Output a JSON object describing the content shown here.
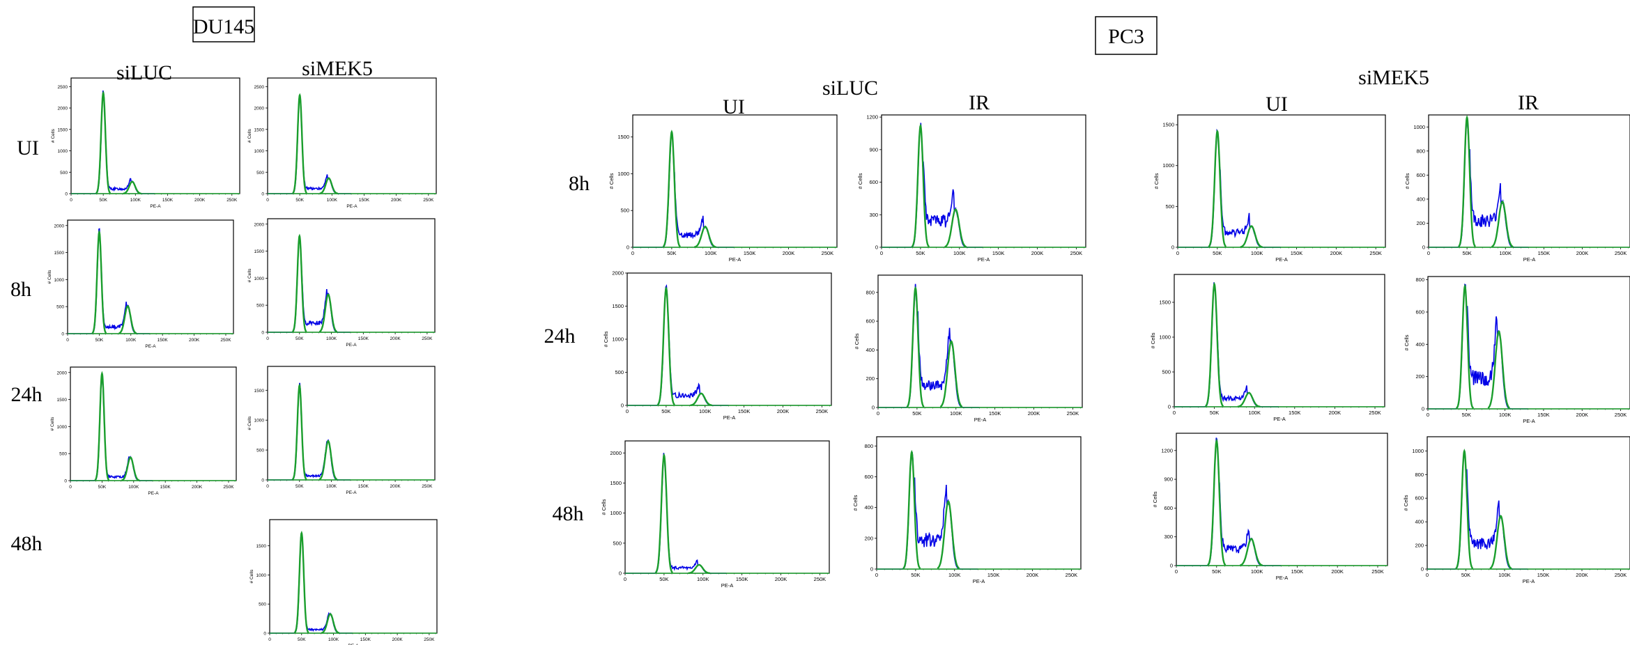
{
  "colors": {
    "g1": "#1a9e2c",
    "g2m": "#0000e6",
    "frame": "#000000"
  },
  "boxes": [
    {
      "id": "du145",
      "text": "DU145"
    },
    {
      "id": "pc3",
      "text": "PC3"
    }
  ],
  "labels": [
    {
      "id": "du-siluc",
      "text": "siLUC"
    },
    {
      "id": "du-simek5",
      "text": "siMEK5"
    },
    {
      "id": "du-row-ui",
      "text": "UI"
    },
    {
      "id": "du-row-8h",
      "text": "8h"
    },
    {
      "id": "du-row-24h",
      "text": "24h"
    },
    {
      "id": "du-row-48h",
      "text": "48h"
    },
    {
      "id": "pc-siluc",
      "text": "siLUC"
    },
    {
      "id": "pc-simek5",
      "text": "siMEK5"
    },
    {
      "id": "pc-siluc-ui",
      "text": "UI"
    },
    {
      "id": "pc-siluc-ir",
      "text": "IR"
    },
    {
      "id": "pc-simek5-ui",
      "text": "UI"
    },
    {
      "id": "pc-simek5-ir",
      "text": "IR"
    },
    {
      "id": "pc-row-8h",
      "text": "8h"
    },
    {
      "id": "pc-row-24h",
      "text": "24h"
    },
    {
      "id": "pc-row-48h",
      "text": "48h"
    }
  ],
  "chart_data": [
    {
      "id": "du-siluc-ui",
      "type": "area",
      "xlabel": "PE-A",
      "ylabel": "# Cells",
      "xlim": [
        0,
        262144
      ],
      "xticks": [
        "0",
        "50K",
        "100K",
        "150K",
        "200K",
        "250K"
      ],
      "ylim": [
        0,
        2700
      ],
      "yticks": [
        "0",
        "500",
        "1000",
        "1500",
        "2000",
        "2500"
      ],
      "g1_height": 2350,
      "g1_pos": 50000,
      "g2_height": 280,
      "g2_pos": 95000,
      "s_phase": 110
    },
    {
      "id": "du-simek5-ui",
      "type": "area",
      "xlabel": "PE-A",
      "ylabel": "# Cells",
      "xlim": [
        0,
        262144
      ],
      "xticks": [
        "0",
        "50K",
        "100K",
        "150K",
        "200K",
        "250K"
      ],
      "ylim": [
        0,
        2700
      ],
      "yticks": [
        "0",
        "500",
        "1000",
        "1500",
        "2000",
        "2500"
      ],
      "g1_height": 2300,
      "g1_pos": 50000,
      "g2_height": 360,
      "g2_pos": 95000,
      "s_phase": 120
    },
    {
      "id": "du-siluc-8h",
      "type": "area",
      "xlabel": "PE-A",
      "ylabel": "# Cells",
      "xlim": [
        0,
        262144
      ],
      "xticks": [
        "0",
        "50K",
        "100K",
        "150K",
        "200K",
        "250K"
      ],
      "ylim": [
        0,
        2100
      ],
      "yticks": [
        "0",
        "500",
        "1000",
        "1500",
        "2000"
      ],
      "g1_height": 1880,
      "g1_pos": 50000,
      "g2_height": 510,
      "g2_pos": 95000,
      "s_phase": 130
    },
    {
      "id": "du-simek5-8h",
      "type": "area",
      "xlabel": "PE-A",
      "ylabel": "# Cells",
      "xlim": [
        0,
        262144
      ],
      "xticks": [
        "0",
        "50K",
        "100K",
        "150K",
        "200K",
        "250K"
      ],
      "ylim": [
        0,
        2100
      ],
      "yticks": [
        "0",
        "500",
        "1000",
        "1500",
        "2000"
      ],
      "g1_height": 1780,
      "g1_pos": 50000,
      "g2_height": 700,
      "g2_pos": 95000,
      "s_phase": 170
    },
    {
      "id": "du-siluc-24h",
      "type": "area",
      "xlabel": "PE-A",
      "ylabel": "# Cells",
      "xlim": [
        0,
        262144
      ],
      "xticks": [
        "0",
        "50K",
        "100K",
        "150K",
        "200K",
        "250K"
      ],
      "ylim": [
        0,
        2100
      ],
      "yticks": [
        "0",
        "500",
        "1000",
        "1500",
        "2000"
      ],
      "g1_height": 1980,
      "g1_pos": 50000,
      "g2_height": 430,
      "g2_pos": 95000,
      "s_phase": 70
    },
    {
      "id": "du-simek5-24h",
      "type": "area",
      "xlabel": "PE-A",
      "ylabel": "# Cells",
      "xlim": [
        0,
        262144
      ],
      "xticks": [
        "0",
        "50K",
        "100K",
        "150K",
        "200K",
        "250K"
      ],
      "ylim": [
        0,
        1900
      ],
      "yticks": [
        "0",
        "500",
        "1000",
        "1500"
      ],
      "g1_height": 1580,
      "g1_pos": 50000,
      "g2_height": 650,
      "g2_pos": 95000,
      "s_phase": 70
    },
    {
      "id": "du-simek5-48h",
      "type": "area",
      "xlabel": "PE-A",
      "ylabel": "# Cells",
      "xlim": [
        0,
        262144
      ],
      "xticks": [
        "0",
        "50K",
        "100K",
        "150K",
        "200K",
        "250K"
      ],
      "ylim": [
        0,
        1950
      ],
      "yticks": [
        "0",
        "500",
        "1000",
        "1500"
      ],
      "g1_height": 1720,
      "g1_pos": 50000,
      "g2_height": 330,
      "g2_pos": 95000,
      "s_phase": 60
    },
    {
      "id": "pc-siluc-ui-8h",
      "type": "area",
      "xlabel": "PE-A",
      "ylabel": "# Cells",
      "xlim": [
        0,
        262144
      ],
      "xticks": [
        "0",
        "50K",
        "100K",
        "150K",
        "200K",
        "250K"
      ],
      "ylim": [
        0,
        1800
      ],
      "yticks": [
        "0",
        "500",
        "1000",
        "1500"
      ],
      "g1_height": 1570,
      "g1_pos": 50000,
      "g2_height": 280,
      "g2_pos": 93000,
      "s_phase": 170
    },
    {
      "id": "pc-siluc-ir-8h",
      "type": "area",
      "xlabel": "PE-A",
      "ylabel": "# Cells",
      "xlim": [
        0,
        262144
      ],
      "xticks": [
        "0",
        "50K",
        "100K",
        "150K",
        "200K",
        "250K"
      ],
      "ylim": [
        0,
        1220
      ],
      "yticks": [
        "0",
        "300",
        "600",
        "900",
        "1200"
      ],
      "g1_height": 1120,
      "g1_pos": 50000,
      "g2_height": 350,
      "g2_pos": 95000,
      "s_phase": 240
    },
    {
      "id": "pc-simek5-ui-8h",
      "type": "area",
      "xlabel": "PE-A",
      "ylabel": "# Cells",
      "xlim": [
        0,
        262144
      ],
      "xticks": [
        "0",
        "50K",
        "100K",
        "150K",
        "200K",
        "250K"
      ],
      "ylim": [
        0,
        1620
      ],
      "yticks": [
        "0",
        "500",
        "1000",
        "1500"
      ],
      "g1_height": 1420,
      "g1_pos": 50000,
      "g2_height": 260,
      "g2_pos": 93000,
      "s_phase": 180
    },
    {
      "id": "pc-simek5-ir-8h",
      "type": "area",
      "xlabel": "PE-A",
      "ylabel": "# Cells",
      "xlim": [
        0,
        262144
      ],
      "xticks": [
        "0",
        "50K",
        "100K",
        "150K",
        "200K",
        "250K"
      ],
      "ylim": [
        0,
        1100
      ],
      "yticks": [
        "0",
        "200",
        "400",
        "600",
        "800",
        "1000"
      ],
      "g1_height": 1080,
      "g1_pos": 50000,
      "g2_height": 380,
      "g2_pos": 96000,
      "s_phase": 220
    },
    {
      "id": "pc-siluc-ui-24h",
      "type": "area",
      "xlabel": "PE-A",
      "ylabel": "# Cells",
      "xlim": [
        0,
        262144
      ],
      "xticks": [
        "0",
        "50K",
        "100K",
        "150K",
        "200K",
        "250K"
      ],
      "ylim": [
        0,
        2000
      ],
      "yticks": [
        "0",
        "500",
        "1000",
        "1500",
        "2000"
      ],
      "g1_height": 1770,
      "g1_pos": 50000,
      "g2_height": 180,
      "g2_pos": 95000,
      "s_phase": 150
    },
    {
      "id": "pc-siluc-ir-24h",
      "type": "area",
      "xlabel": "PE-A",
      "ylabel": "# Cells",
      "xlim": [
        0,
        262144
      ],
      "xticks": [
        "0",
        "50K",
        "100K",
        "150K",
        "200K",
        "250K"
      ],
      "ylim": [
        0,
        920
      ],
      "yticks": [
        "0",
        "200",
        "400",
        "600",
        "800"
      ],
      "g1_height": 830,
      "g1_pos": 48000,
      "g2_height": 460,
      "g2_pos": 94000,
      "s_phase": 150
    },
    {
      "id": "pc-simek5-ui-24h",
      "type": "area",
      "xlabel": "PE-A",
      "ylabel": "# Cells",
      "xlim": [
        0,
        262144
      ],
      "xticks": [
        "0",
        "50K",
        "100K",
        "150K",
        "200K",
        "250K"
      ],
      "ylim": [
        0,
        1900
      ],
      "yticks": [
        "0",
        "500",
        "1000",
        "1500"
      ],
      "g1_height": 1760,
      "g1_pos": 50000,
      "g2_height": 200,
      "g2_pos": 93000,
      "s_phase": 120
    },
    {
      "id": "pc-simek5-ir-24h",
      "type": "area",
      "xlabel": "PE-A",
      "ylabel": "# Cells",
      "xlim": [
        0,
        262144
      ],
      "xticks": [
        "0",
        "50K",
        "100K",
        "150K",
        "200K",
        "250K"
      ],
      "ylim": [
        0,
        820
      ],
      "yticks": [
        "0",
        "200",
        "400",
        "600",
        "800"
      ],
      "g1_height": 760,
      "g1_pos": 48000,
      "g2_height": 480,
      "g2_pos": 92000,
      "s_phase": 190
    },
    {
      "id": "pc-siluc-ui-48h",
      "type": "area",
      "xlabel": "PE-A",
      "ylabel": "# Cells",
      "xlim": [
        0,
        262144
      ],
      "xticks": [
        "0",
        "50K",
        "100K",
        "150K",
        "200K",
        "250K"
      ],
      "ylim": [
        0,
        2200
      ],
      "yticks": [
        "0",
        "500",
        "1000",
        "1500",
        "2000"
      ],
      "g1_height": 1960,
      "g1_pos": 50000,
      "g2_height": 140,
      "g2_pos": 95000,
      "s_phase": 90
    },
    {
      "id": "pc-siluc-ir-48h",
      "type": "area",
      "xlabel": "PE-A",
      "ylabel": "# Cells",
      "xlim": [
        0,
        262144
      ],
      "xticks": [
        "0",
        "50K",
        "100K",
        "150K",
        "200K",
        "250K"
      ],
      "ylim": [
        0,
        860
      ],
      "yticks": [
        "0",
        "200",
        "400",
        "600",
        "800"
      ],
      "g1_height": 760,
      "g1_pos": 45000,
      "g2_height": 440,
      "g2_pos": 92000,
      "s_phase": 190
    },
    {
      "id": "pc-simek5-ui-48h",
      "type": "area",
      "xlabel": "PE-A",
      "ylabel": "# Cells",
      "xlim": [
        0,
        262144
      ],
      "xticks": [
        "0",
        "50K",
        "100K",
        "150K",
        "200K",
        "250K"
      ],
      "ylim": [
        0,
        1380
      ],
      "yticks": [
        "0",
        "300",
        "600",
        "900",
        "1200"
      ],
      "g1_height": 1300,
      "g1_pos": 50000,
      "g2_height": 280,
      "g2_pos": 93000,
      "s_phase": 170
    },
    {
      "id": "pc-simek5-ir-48h",
      "type": "area",
      "xlabel": "PE-A",
      "ylabel": "# Cells",
      "xlim": [
        0,
        262144
      ],
      "xticks": [
        "0",
        "50K",
        "100K",
        "150K",
        "200K",
        "250K"
      ],
      "ylim": [
        0,
        1120
      ],
      "yticks": [
        "0",
        "200",
        "400",
        "600",
        "800",
        "1000"
      ],
      "g1_height": 1000,
      "g1_pos": 48000,
      "g2_height": 450,
      "g2_pos": 95000,
      "s_phase": 220
    }
  ]
}
